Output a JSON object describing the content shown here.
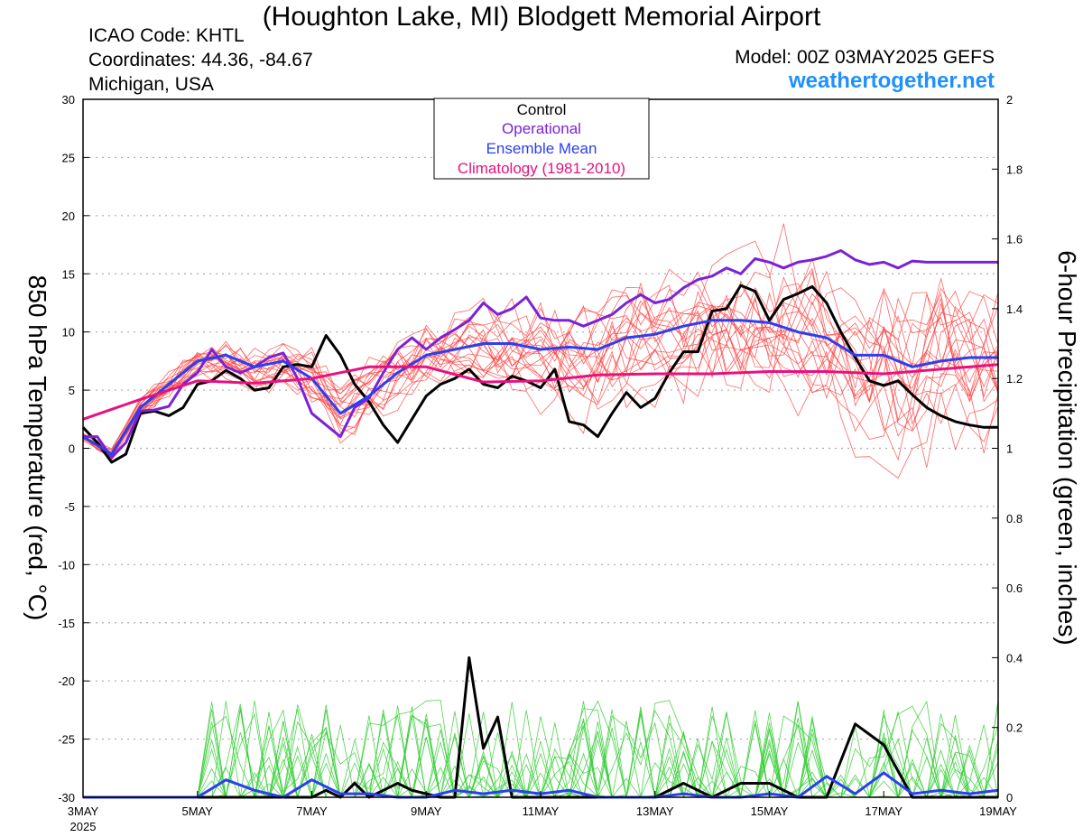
{
  "header": {
    "title": "(Houghton Lake, MI) Blodgett Memorial Airport",
    "icao": "ICAO Code: KHTL",
    "coordinates": "Coordinates: 44.36, -84.67",
    "region": "Michigan, USA",
    "model": "Model: 00Z 03MAY2025 GEFS",
    "site": "weathertogether.net"
  },
  "colors": {
    "control": "#000000",
    "operational": "#7b22d6",
    "ensemble_mean": "#2b3ff0",
    "climatology": "#e8117f",
    "temp_members": "#ff4040",
    "precip_members": "#33cc33",
    "site": "#1e90ff"
  },
  "chart_data": {
    "type": "line",
    "ylabel": "850 hPa Temperature (red, °C)",
    "y2label": "6-hour Precipitation (green, inches)",
    "ylim": [
      -30,
      30
    ],
    "y2lim": [
      0,
      2
    ],
    "yticks": [
      30,
      25,
      20,
      15,
      10,
      5,
      0,
      -5,
      -10,
      -15,
      -20,
      -25,
      -30
    ],
    "y2ticks": [
      2,
      1.8,
      1.6,
      1.4,
      1.2,
      1,
      0.8,
      0.6,
      0.4,
      0.2,
      0
    ],
    "x_tick_labels": [
      "3MAY",
      "5MAY",
      "7MAY",
      "9MAY",
      "11MAY",
      "13MAY",
      "15MAY",
      "17MAY",
      "19MAY"
    ],
    "x_year_label": "2025",
    "x_unit": "days after 00Z 3MAY2025",
    "xlim": [
      0,
      16
    ],
    "grid": true,
    "legend": {
      "position": "top-center",
      "entries": [
        {
          "label": "Control",
          "color": "#000000"
        },
        {
          "label": "Operational",
          "color": "#7b22d6"
        },
        {
          "label": "Ensemble Mean",
          "color": "#2b3ff0"
        },
        {
          "label": "Climatology (1981-2010)",
          "color": "#e8117f"
        }
      ]
    },
    "temperature_series": [
      {
        "name": "Control",
        "x": [
          0,
          0.25,
          0.5,
          0.75,
          1,
          1.25,
          1.5,
          1.75,
          2,
          2.25,
          2.5,
          2.75,
          3,
          3.25,
          3.5,
          3.75,
          4,
          4.25,
          4.5,
          4.75,
          5,
          5.25,
          5.5,
          5.75,
          6,
          6.25,
          6.5,
          6.75,
          7,
          7.25,
          7.5,
          7.75,
          8,
          8.25,
          8.5,
          8.75,
          9,
          9.25,
          9.5,
          9.75,
          10,
          10.25,
          10.5,
          10.75,
          11,
          11.25,
          11.5,
          11.75,
          12,
          12.25,
          12.5,
          12.75,
          13,
          13.25,
          13.5,
          13.75,
          14,
          14.25,
          14.5,
          14.75,
          15,
          15.25,
          15.5,
          15.75,
          16
        ],
        "y": [
          1.8,
          0.5,
          -1.2,
          -0.5,
          3.0,
          3.2,
          2.8,
          3.5,
          5.5,
          5.8,
          6.7,
          6.0,
          5.0,
          5.2,
          7.0,
          7.2,
          7.0,
          9.7,
          8.0,
          5.5,
          4.0,
          2.0,
          0.5,
          2.5,
          4.5,
          5.5,
          6.0,
          6.8,
          5.5,
          5.2,
          6.2,
          5.8,
          5.2,
          6.8,
          2.3,
          2.0,
          1.0,
          3.0,
          4.8,
          3.5,
          4.3,
          6.5,
          8.3,
          8.3,
          11.8,
          12.0,
          14.0,
          13.5,
          11.0,
          12.8,
          13.3,
          13.9,
          12.5,
          10.0,
          7.8,
          5.8,
          5.4,
          5.8,
          4.6,
          3.5,
          2.8,
          2.3,
          2.0,
          1.8,
          1.8
        ]
      },
      {
        "name": "Operational",
        "x": [
          0,
          0.25,
          0.5,
          0.75,
          1,
          1.25,
          1.5,
          1.75,
          2,
          2.25,
          2.5,
          2.75,
          3,
          3.25,
          3.5,
          3.75,
          4,
          4.25,
          4.5,
          4.75,
          5,
          5.25,
          5.5,
          5.75,
          6,
          6.25,
          6.5,
          6.75,
          7,
          7.25,
          7.5,
          7.75,
          8,
          8.25,
          8.5,
          8.75,
          9,
          9.25,
          9.5,
          9.75,
          10,
          10.25,
          10.5,
          10.75,
          11,
          11.25,
          11.5,
          11.75,
          12,
          12.25,
          12.5,
          12.75,
          13,
          13.25,
          13.5,
          13.75,
          14,
          14.25,
          14.5,
          14.75,
          15,
          15.25,
          15.5,
          15.75,
          16
        ],
        "y": [
          1.0,
          1.0,
          -0.8,
          0.5,
          3.2,
          3.3,
          3.6,
          5.5,
          6.5,
          8.5,
          7.0,
          6.5,
          7.0,
          7.8,
          8.2,
          6.0,
          3.0,
          2.0,
          1.0,
          3.5,
          4.3,
          6.5,
          8.5,
          9.5,
          8.5,
          9.5,
          10.2,
          11.0,
          12.5,
          11.5,
          12.0,
          13.0,
          11.2,
          11.0,
          11.0,
          10.5,
          11.0,
          11.5,
          12.5,
          13.2,
          12.5,
          12.8,
          13.8,
          14.5,
          14.8,
          15.5,
          15.0,
          16.3,
          16.0,
          15.5,
          16.0,
          16.2,
          16.5,
          17.0,
          16.2,
          15.8,
          16.0,
          15.5,
          16.1,
          16.0,
          16.0,
          16.0,
          16.0,
          16.0,
          16.0
        ]
      },
      {
        "name": "Ensemble Mean",
        "x": [
          0,
          0.5,
          1,
          1.5,
          2,
          2.5,
          3,
          3.5,
          4,
          4.5,
          5,
          5.5,
          6,
          6.5,
          7,
          7.5,
          8,
          8.5,
          9,
          9.5,
          10,
          10.5,
          11,
          11.5,
          12,
          12.5,
          13,
          13.5,
          14,
          14.5,
          15,
          15.5,
          16
        ],
        "y": [
          1.0,
          -0.5,
          3.5,
          5.5,
          7.5,
          8.0,
          7.0,
          7.5,
          6.0,
          3.0,
          4.5,
          6.5,
          8.0,
          8.5,
          9.0,
          9.0,
          8.5,
          8.7,
          8.5,
          9.5,
          9.8,
          10.5,
          11.0,
          11.0,
          10.8,
          10.0,
          9.5,
          8.0,
          8.0,
          7.0,
          7.5,
          7.8,
          7.8
        ]
      },
      {
        "name": "Climatology (1981-2010)",
        "x": [
          0,
          1,
          2,
          3,
          4,
          5,
          6,
          7,
          8,
          9,
          10,
          11,
          12,
          13,
          14,
          15,
          16
        ],
        "y": [
          2.5,
          4.2,
          5.8,
          5.6,
          6.0,
          7.0,
          7.0,
          5.7,
          5.8,
          6.3,
          6.4,
          6.4,
          6.6,
          6.6,
          6.4,
          6.8,
          7.2
        ]
      }
    ],
    "precipitation_series": [
      {
        "name": "Control",
        "x": [
          0,
          0.5,
          1,
          1.5,
          2,
          2.5,
          3,
          3.5,
          4,
          4.25,
          4.5,
          4.75,
          5,
          5.25,
          5.5,
          5.75,
          6,
          6.25,
          6.5,
          6.75,
          7,
          7.25,
          7.5,
          7.75,
          8,
          8.5,
          9,
          9.5,
          10,
          10.5,
          11,
          11.5,
          12,
          12.5,
          13,
          13.5,
          14,
          14.5,
          15,
          15.5,
          16
        ],
        "y": [
          0,
          0,
          0,
          0,
          0,
          0,
          0,
          0,
          0,
          0.02,
          0,
          0.04,
          0,
          0.02,
          0.04,
          0.02,
          0.01,
          0,
          0,
          0.4,
          0.14,
          0.23,
          0,
          0,
          0,
          0,
          0,
          0,
          0,
          0.04,
          0,
          0.04,
          0.04,
          0,
          0,
          0.21,
          0.15,
          0,
          0,
          0,
          0
        ]
      },
      {
        "name": "Ensemble Mean",
        "x": [
          0,
          1,
          2,
          2.5,
          3,
          3.5,
          4,
          4.5,
          5,
          5.5,
          6,
          6.5,
          7,
          7.5,
          8,
          8.5,
          9,
          9.5,
          10,
          10.5,
          11,
          11.5,
          12,
          12.5,
          13,
          13.5,
          14,
          14.5,
          15,
          15.5,
          16
        ],
        "y": [
          0,
          0,
          0,
          0.05,
          0.02,
          0,
          0.05,
          0.01,
          0.01,
          0,
          0,
          0.02,
          0.01,
          0.02,
          0.01,
          0.02,
          0,
          0,
          0,
          0.01,
          0,
          0,
          0.01,
          0,
          0.06,
          0.01,
          0.07,
          0.01,
          0.02,
          0.01,
          0.02
        ]
      }
    ]
  }
}
